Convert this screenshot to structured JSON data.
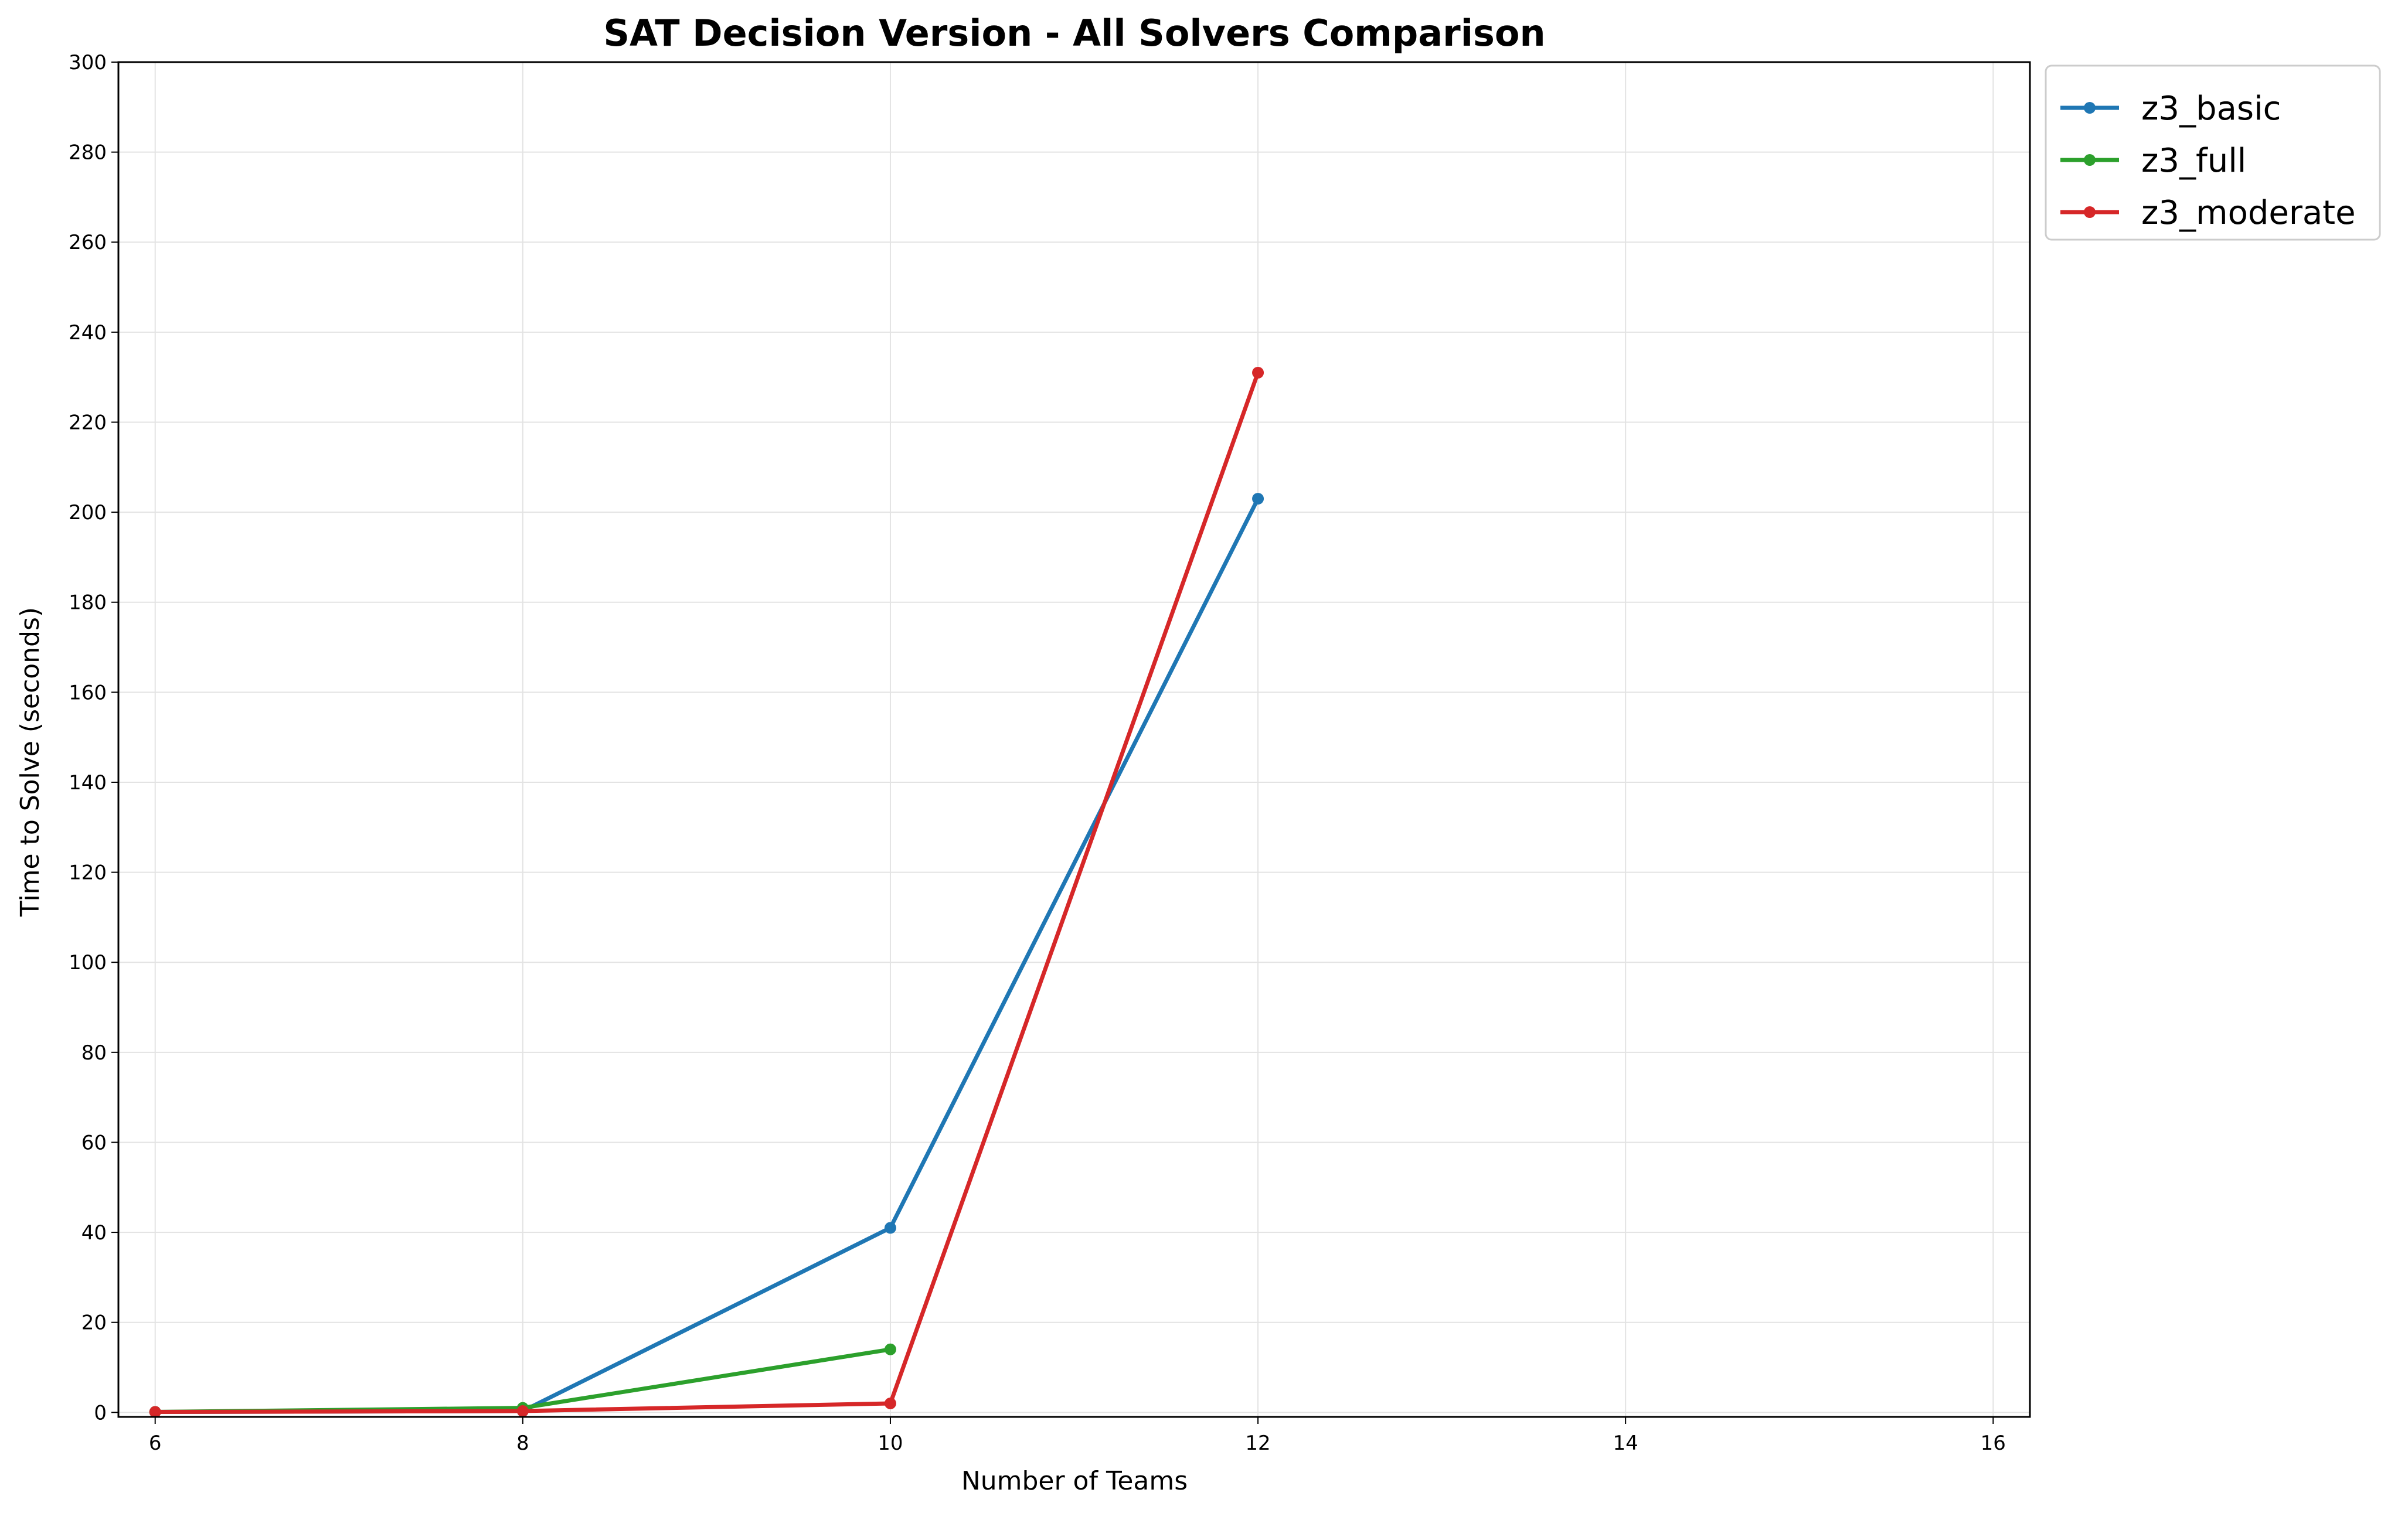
{
  "chart_data": {
    "type": "line",
    "title": "SAT Decision Version - All Solvers Comparison",
    "xlabel": "Number of Teams",
    "ylabel": "Time to Solve (seconds)",
    "xlim": [
      5.8,
      16.2
    ],
    "ylim": [
      -1,
      300
    ],
    "xticks": [
      6,
      8,
      10,
      12,
      14,
      16
    ],
    "yticks": [
      0,
      20,
      40,
      60,
      80,
      100,
      120,
      140,
      160,
      180,
      200,
      220,
      240,
      260,
      280,
      300
    ],
    "grid": true,
    "legend_position": "outside top-right",
    "series": [
      {
        "name": "z3_basic",
        "color": "#1f77b4",
        "x": [
          6,
          8,
          10,
          12
        ],
        "y": [
          0.1,
          0.3,
          41,
          203
        ]
      },
      {
        "name": "z3_full",
        "color": "#2ca02c",
        "x": [
          6,
          8,
          10
        ],
        "y": [
          0.1,
          1,
          14
        ]
      },
      {
        "name": "z3_moderate",
        "color": "#d62728",
        "x": [
          6,
          8,
          10,
          12
        ],
        "y": [
          0.1,
          0.3,
          2,
          231
        ]
      }
    ]
  }
}
